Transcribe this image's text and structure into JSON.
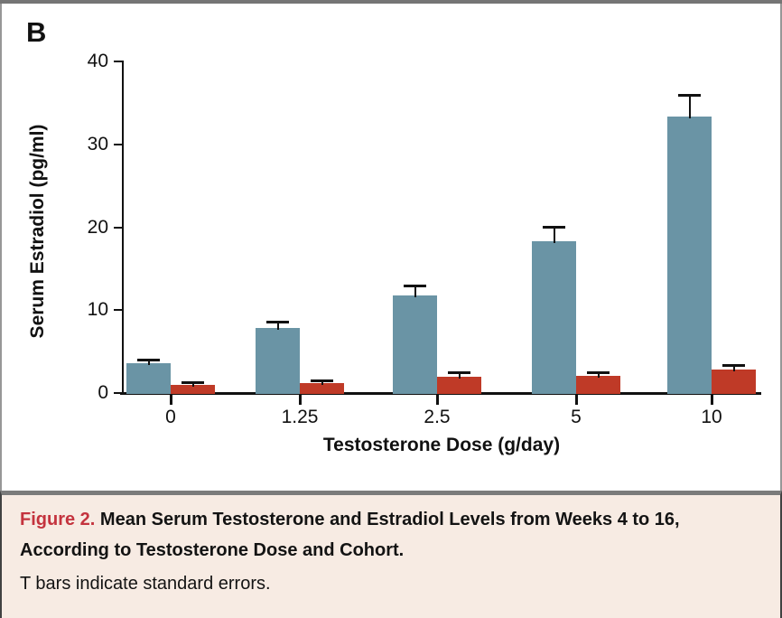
{
  "panel_label": "B",
  "chart_data": {
    "type": "bar",
    "title": "",
    "xlabel": "Testosterone Dose (g/day)",
    "ylabel": "Serum Estradiol (pg/ml)",
    "categories": [
      "0",
      "1.25",
      "2.5",
      "5",
      "10"
    ],
    "ylim": [
      0,
      40
    ],
    "yticks": [
      0,
      10,
      20,
      30,
      40
    ],
    "grid": false,
    "legend_position": "none",
    "error_bars": "standard errors (T bars)",
    "series": [
      {
        "name": "blue-bars",
        "color": "#6a94a5",
        "values": [
          3.6,
          7.9,
          11.8,
          18.3,
          33.4
        ],
        "se": [
          0.3,
          0.6,
          1.1,
          1.7,
          2.5
        ]
      },
      {
        "name": "red-bars",
        "color": "#bf3a27",
        "values": [
          1.0,
          1.2,
          2.0,
          2.1,
          2.8
        ],
        "se": [
          0.2,
          0.2,
          0.4,
          0.3,
          0.5
        ]
      }
    ]
  },
  "caption": {
    "figure_label": "Figure 2.",
    "title": "Mean Serum Testosterone and Estradiol Levels from Weeks 4 to 16, According to Testosterone Dose and Cohort.",
    "note": "T bars indicate standard errors.",
    "label_color": "#c4333e",
    "background": "#f7ebe3"
  }
}
